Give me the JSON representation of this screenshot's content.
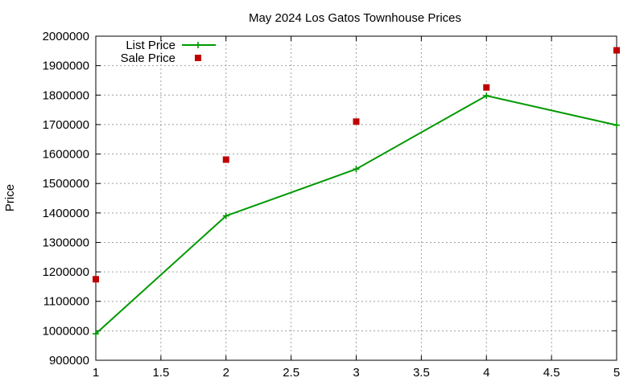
{
  "chart_data": {
    "type": "line",
    "title": "May 2024 Los Gatos Townhouse Prices",
    "xlabel": "",
    "ylabel": "Price",
    "xlim": [
      1,
      5
    ],
    "ylim": [
      900000,
      2000000
    ],
    "xticks": [
      1,
      1.5,
      2,
      2.5,
      3,
      3.5,
      4,
      4.5,
      5
    ],
    "xtick_labels": [
      "1",
      "1.5",
      "2",
      "2.5",
      "3",
      "3.5",
      "4",
      "4.5",
      "5"
    ],
    "yticks": [
      900000,
      1000000,
      1100000,
      1200000,
      1300000,
      1400000,
      1500000,
      1600000,
      1700000,
      1800000,
      1900000,
      2000000
    ],
    "ytick_labels": [
      "900000",
      "1000000",
      "1100000",
      "1200000",
      "1300000",
      "1400000",
      "1500000",
      "1600000",
      "1700000",
      "1800000",
      "1900000",
      "2000000"
    ],
    "grid": true,
    "legend_position": "top-left",
    "series": [
      {
        "name": "List Price",
        "style": "linespoints",
        "marker": "plus",
        "color": "#009900",
        "x": [
          1,
          2,
          3,
          4,
          5
        ],
        "y": [
          990000,
          1390000,
          1549000,
          1798000,
          1698000
        ]
      },
      {
        "name": "Sale Price",
        "style": "points",
        "marker": "square",
        "color": "#c00000",
        "x": [
          1,
          2,
          3,
          4,
          5
        ],
        "y": [
          1175000,
          1581000,
          1710000,
          1826000,
          1952000
        ]
      }
    ]
  }
}
